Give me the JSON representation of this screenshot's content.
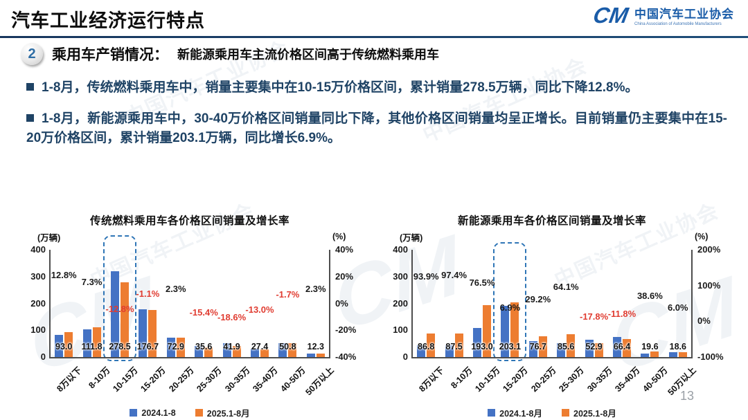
{
  "header": {
    "title": "汽车工业经济运行特点",
    "logo": {
      "cm": "CM",
      "org_cn": "中国汽车工业协会",
      "org_en": "China Association of Automobile Manufacturers"
    }
  },
  "section": {
    "number": "2",
    "heading_main": "乘用车产销情况：",
    "heading_sub": "新能源乘用车主流价格区间高于传统燃料乘用车"
  },
  "bullets": [
    "1-8月，传统燃料乘用车中，销量主要集中在10-15万价格区间，累计销量278.5万辆，同比下降12.8%。",
    "1-8月，新能源乘用车中，30-40万价格区间销量同比下降，其他价格区间销量均呈正增长。目前销量仍主要集中在15-20万价格区间，累计销量203.1万辆，同比增长6.9%。"
  ],
  "watermark": {
    "cn": "中国汽车工业协会",
    "cm": "CM"
  },
  "page": {
    "number": "13"
  },
  "colors": {
    "bar2024": "#4472C4",
    "bar2025": "#ED7D31",
    "negative": "#E03C31",
    "positive": "#1A1A1A",
    "accent_line": "#17365D",
    "highlight_box": "#2E75B6",
    "bullet_text": "#1F4365",
    "logo_blue": "#1A5CA8"
  },
  "chart_data": [
    {
      "type": "bar",
      "title": "传统燃料乘用车各价格区间销量及增长率",
      "left_axis": {
        "unit": "(万辆)",
        "ticks": [
          "400",
          "300",
          "200",
          "100",
          "0"
        ],
        "max": 400,
        "min": 0
      },
      "right_axis": {
        "unit": "(%)",
        "ticks": [
          "40%",
          "20%",
          "0%",
          "-20%",
          "-40%"
        ],
        "max": 40,
        "min": -40
      },
      "categories": [
        "8万以下",
        "8-10万",
        "10-15万",
        "15-20万",
        "20-25万",
        "25-30万",
        "30-35万",
        "35-40万",
        "40-50万",
        "50万以上"
      ],
      "series": [
        {
          "name": "2024.1-8",
          "values": [
            82.4,
            104.2,
            319.4,
            178.7,
            71.3,
            42.1,
            51.5,
            31.5,
            51.7,
            12.0
          ]
        },
        {
          "name": "2025.1-8月",
          "values": [
            93.0,
            111.8,
            278.5,
            176.7,
            72.9,
            35.6,
            41.9,
            27.4,
            50.8,
            12.3
          ]
        }
      ],
      "value_labels": [
        "93.0",
        "111.8",
        "278.5",
        "176.7",
        "72.9",
        "35.6",
        "41.9",
        "27.4",
        "50.8",
        "12.3"
      ],
      "growth": [
        {
          "label": "12.8%",
          "value": 12.8
        },
        {
          "label": "7.3%",
          "value": 7.3
        },
        {
          "label": "-12.8%",
          "value": -12.8
        },
        {
          "label": "-1.1%",
          "value": -1.1
        },
        {
          "label": "2.3%",
          "value": 2.3
        },
        {
          "label": "-15.4%",
          "value": -15.4
        },
        {
          "label": "-18.6%",
          "value": -18.6
        },
        {
          "label": "-13.0%",
          "value": -13.0
        },
        {
          "label": "-1.7%",
          "value": -1.7
        },
        {
          "label": "2.3%",
          "value": 2.3
        }
      ],
      "highlight_category": "10-15万",
      "highlight_index": 2,
      "legend": [
        "2024.1-8",
        "2025.1-8月"
      ]
    },
    {
      "type": "bar",
      "title": "新能源乘用车各价格区间销量及增长率",
      "left_axis": {
        "unit": "(万辆)",
        "ticks": [
          "400",
          "300",
          "200",
          "100",
          "0"
        ],
        "max": 400,
        "min": 0
      },
      "right_axis": {
        "unit": "(%)",
        "ticks": [
          "200%",
          "100%",
          "0%",
          "-100%"
        ],
        "max": 200,
        "min": -100
      },
      "categories": [
        "8万以下",
        "8-10万",
        "10-15万",
        "15-20万",
        "20-25万",
        "25-30万",
        "30-35万",
        "35-40万",
        "40-50万",
        "50万以上"
      ],
      "series": [
        {
          "name": "2024.1-8月",
          "values": [
            44.8,
            44.3,
            109.3,
            190.0,
            59.4,
            52.2,
            64.4,
            75.3,
            14.1,
            17.5
          ]
        },
        {
          "name": "2025.1-8月",
          "values": [
            86.8,
            87.5,
            193.0,
            203.1,
            76.7,
            85.6,
            52.9,
            66.4,
            19.6,
            18.6
          ]
        }
      ],
      "value_labels": [
        "86.8",
        "87.5",
        "193.0",
        "203.1",
        "76.7",
        "85.6",
        "52.9",
        "66.4",
        "19.6",
        "18.6"
      ],
      "growth": [
        {
          "label": "93.9%",
          "value": 93.9
        },
        {
          "label": "97.4%",
          "value": 97.4
        },
        {
          "label": "76.5%",
          "value": 76.5
        },
        {
          "label": "6.9%",
          "value": 6.9
        },
        {
          "label": "29.2%",
          "value": 29.2
        },
        {
          "label": "64.1%",
          "value": 64.1
        },
        {
          "label": "-17.8%",
          "value": -17.8
        },
        {
          "label": "-11.8%",
          "value": -11.8
        },
        {
          "label": "38.6%",
          "value": 38.6
        },
        {
          "label": "6.0%",
          "value": 6.0
        }
      ],
      "highlight_category": "15-20万",
      "highlight_index": 3,
      "legend": [
        "2024.1-8月",
        "2025.1-8月"
      ]
    }
  ]
}
